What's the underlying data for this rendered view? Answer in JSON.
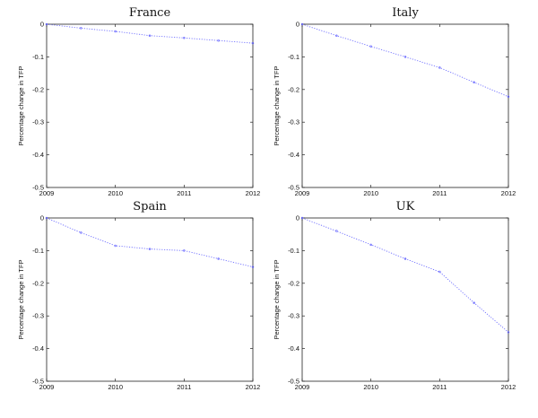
{
  "chart_data": [
    {
      "type": "line",
      "title": "France",
      "ylabel": "Percentage change in TFP",
      "xlabel": "",
      "xlim": [
        2009,
        2012
      ],
      "ylim": [
        -0.5,
        0
      ],
      "x_ticks": [
        "2009",
        "2010",
        "2011",
        "2012"
      ],
      "y_ticks": [
        "0",
        "-0.1",
        "-0.2",
        "-0.3",
        "-0.4",
        "-0.5"
      ],
      "series": [
        {
          "x": [
            2009,
            2009.5,
            2010,
            2010.5,
            2011,
            2011.5,
            2012
          ],
          "values": [
            0,
            -0.012,
            -0.022,
            -0.035,
            -0.042,
            -0.05,
            -0.058
          ]
        }
      ]
    },
    {
      "type": "line",
      "title": "Italy",
      "ylabel": "Percentage change in TFP",
      "xlabel": "",
      "xlim": [
        2009,
        2012
      ],
      "ylim": [
        -0.5,
        0
      ],
      "x_ticks": [
        "2009",
        "2010",
        "2011",
        "2012"
      ],
      "y_ticks": [
        "0",
        "-0.1",
        "-0.2",
        "-0.3",
        "-0.4",
        "-0.5"
      ],
      "series": [
        {
          "x": [
            2009,
            2009.5,
            2010,
            2010.5,
            2011,
            2011.5,
            2012
          ],
          "values": [
            0,
            -0.035,
            -0.068,
            -0.1,
            -0.133,
            -0.178,
            -0.222
          ]
        }
      ]
    },
    {
      "type": "line",
      "title": "Spain",
      "ylabel": "Percentage change in TFP",
      "xlabel": "",
      "xlim": [
        2009,
        2012
      ],
      "ylim": [
        -0.5,
        0
      ],
      "x_ticks": [
        "2009",
        "2010",
        "2011",
        "2012"
      ],
      "y_ticks": [
        "0",
        "-0.1",
        "-0.2",
        "-0.3",
        "-0.4",
        "-0.5"
      ],
      "series": [
        {
          "x": [
            2009,
            2009.5,
            2010,
            2010.5,
            2011,
            2011.5,
            2012
          ],
          "values": [
            0,
            -0.045,
            -0.085,
            -0.095,
            -0.1,
            -0.125,
            -0.15
          ]
        }
      ]
    },
    {
      "type": "line",
      "title": "UK",
      "ylabel": "Percentage change in TFP",
      "xlabel": "",
      "xlim": [
        2009,
        2012
      ],
      "ylim": [
        -0.5,
        0
      ],
      "x_ticks": [
        "2009",
        "2010",
        "2011",
        "2012"
      ],
      "y_ticks": [
        "0",
        "-0.1",
        "-0.2",
        "-0.3",
        "-0.4",
        "-0.5"
      ],
      "series": [
        {
          "x": [
            2009,
            2009.5,
            2010,
            2010.5,
            2011,
            2011.5,
            2012
          ],
          "values": [
            0,
            -0.04,
            -0.082,
            -0.125,
            -0.165,
            -0.26,
            -0.35
          ]
        }
      ]
    }
  ],
  "colors": {
    "series": "#6f6fff",
    "axes": "#222222"
  }
}
